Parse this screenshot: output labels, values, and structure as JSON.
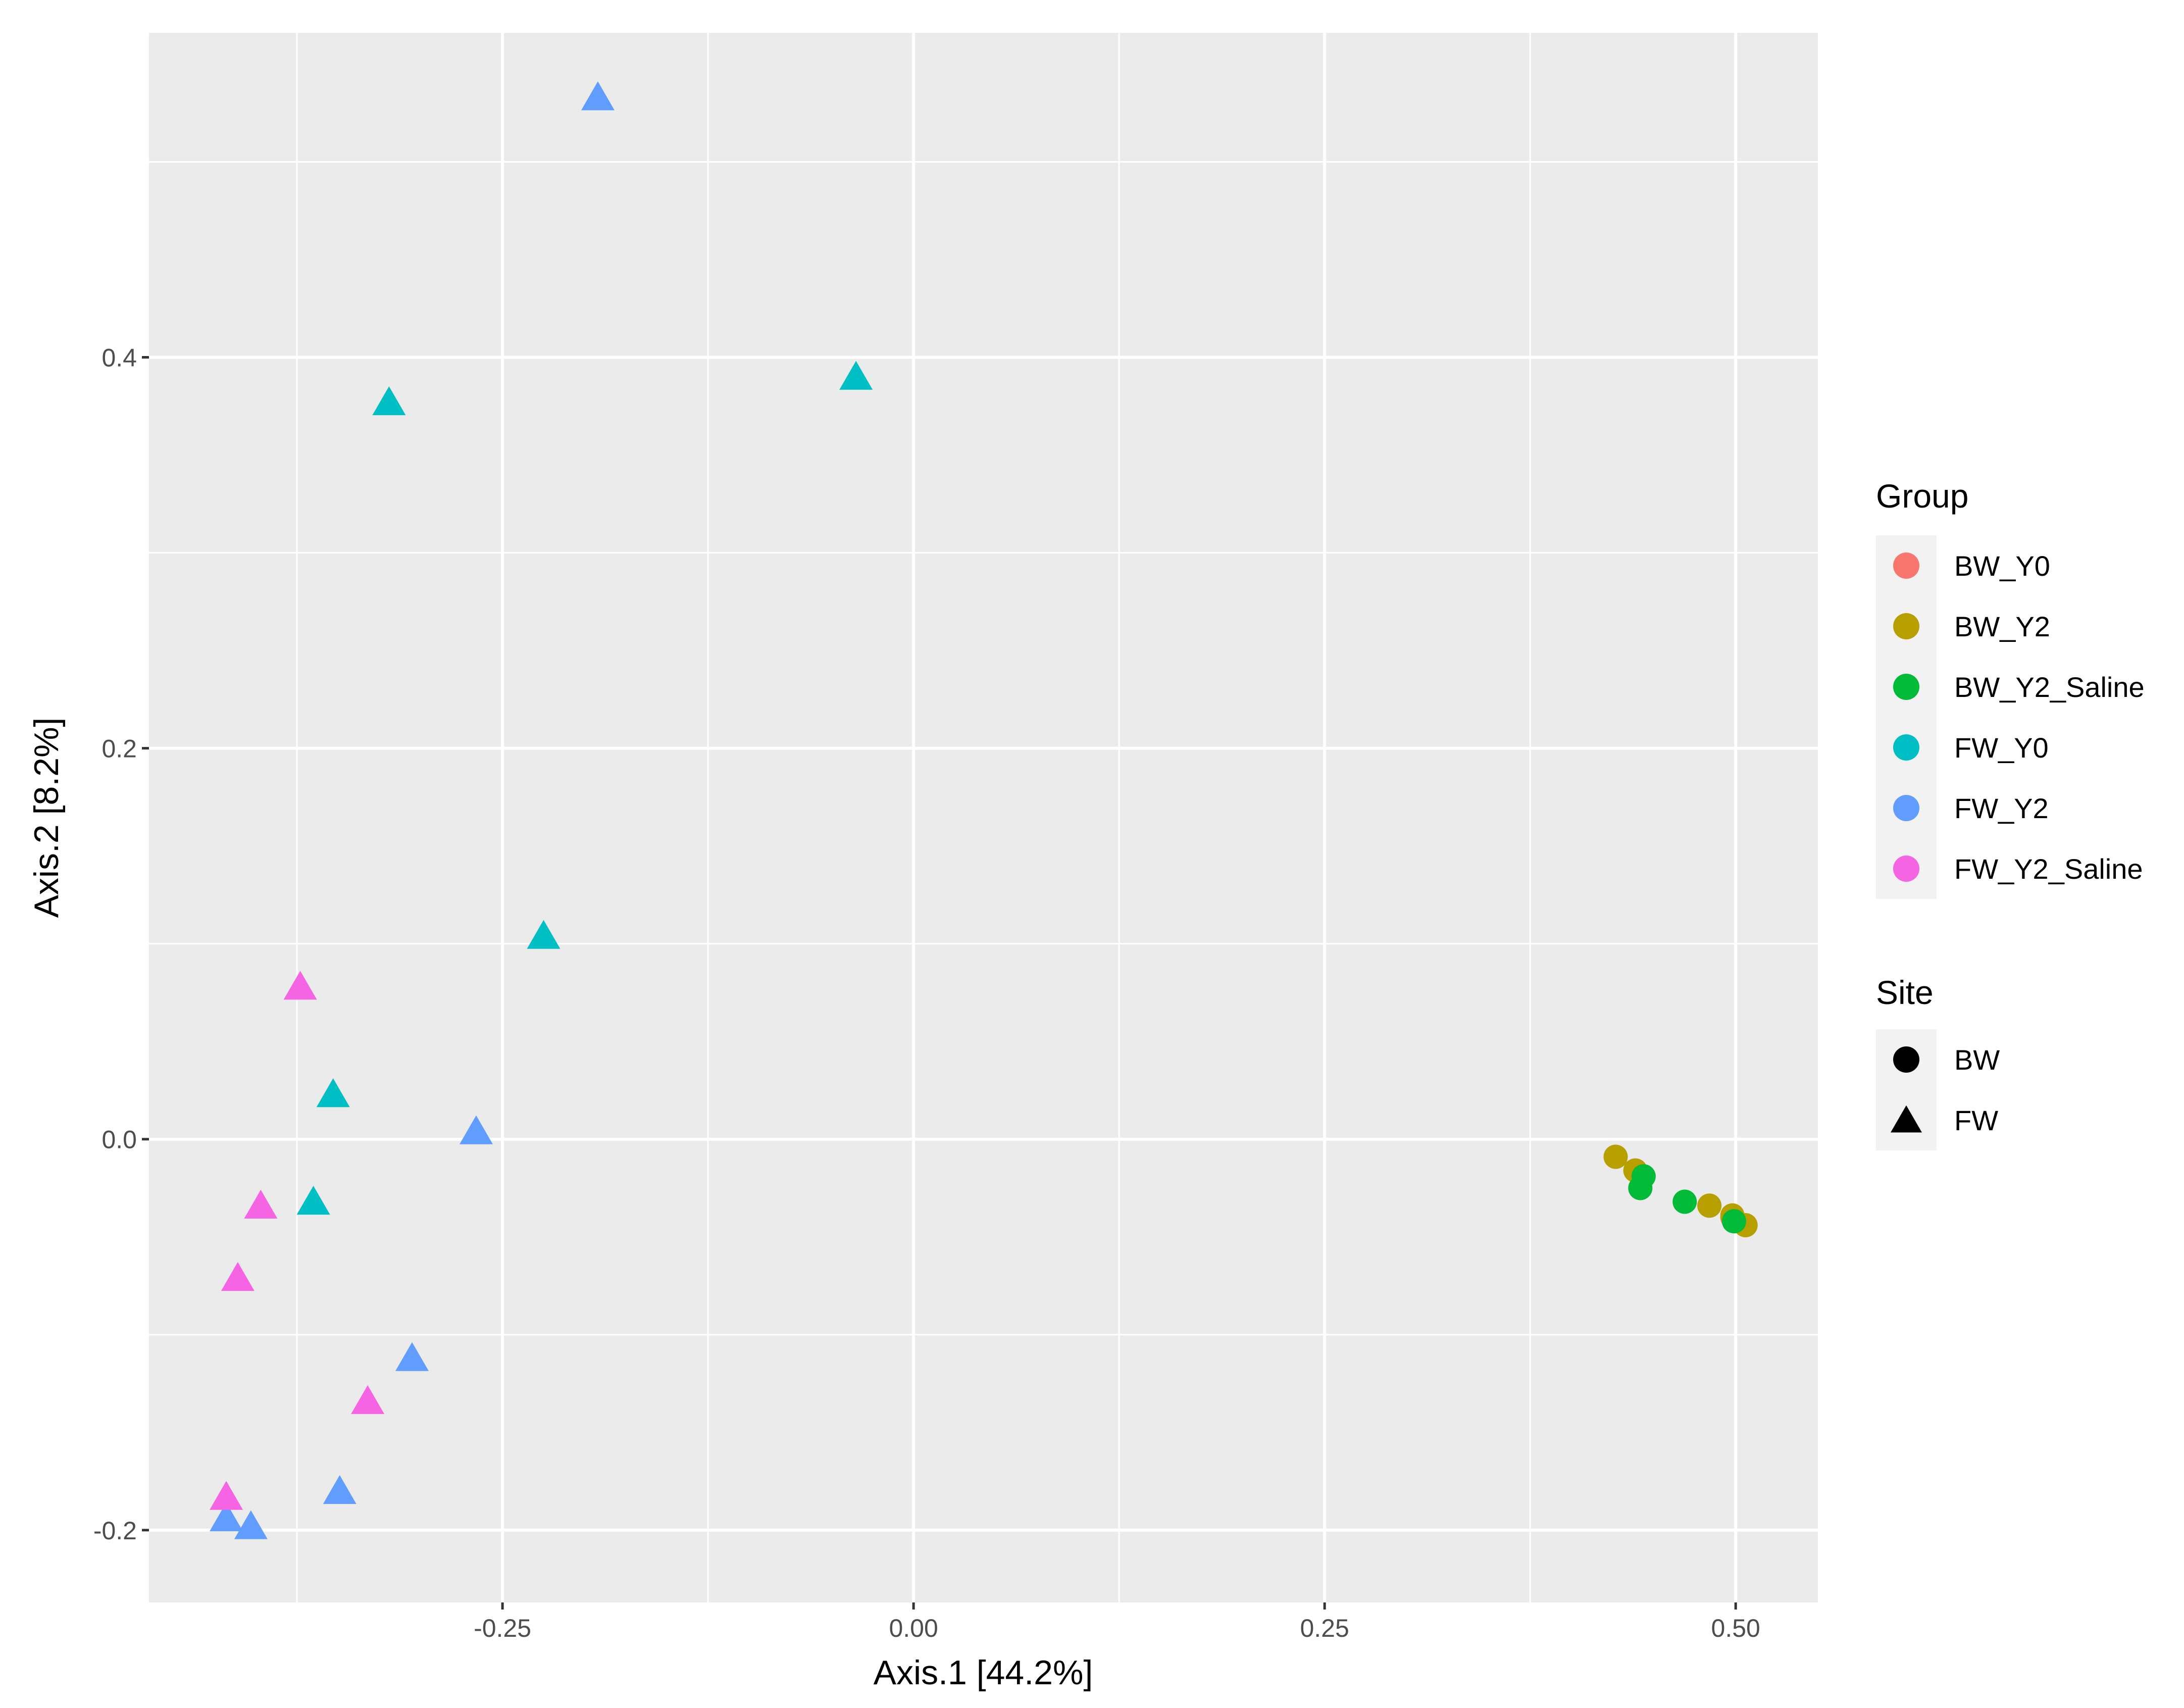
{
  "chart_data": {
    "type": "scatter",
    "xlabel": "Axis.1   [44.2%]",
    "ylabel": "Axis.2   [8.2%]",
    "xlim": [
      -0.465,
      0.55
    ],
    "ylim": [
      -0.237,
      0.566
    ],
    "x_ticks": [
      {
        "value": -0.25,
        "label": "-0.25"
      },
      {
        "value": 0.0,
        "label": "0.00"
      },
      {
        "value": 0.25,
        "label": "0.25"
      },
      {
        "value": 0.5,
        "label": "0.50"
      }
    ],
    "y_ticks": [
      {
        "value": -0.2,
        "label": "-0.2"
      },
      {
        "value": 0.0,
        "label": "0.0"
      },
      {
        "value": 0.2,
        "label": "0.2"
      },
      {
        "value": 0.4,
        "label": "0.4"
      }
    ],
    "grid": true,
    "legend_placement": "right",
    "legends": [
      {
        "title": "Group",
        "entries": [
          {
            "label": "BW_Y0",
            "color": "#F8766D",
            "shape": "circle"
          },
          {
            "label": "BW_Y2",
            "color": "#B79F00",
            "shape": "circle"
          },
          {
            "label": "BW_Y2_Saline",
            "color": "#00BA38",
            "shape": "circle"
          },
          {
            "label": "FW_Y0",
            "color": "#00BFC4",
            "shape": "circle"
          },
          {
            "label": "FW_Y2",
            "color": "#619CFF",
            "shape": "circle"
          },
          {
            "label": "FW_Y2_Saline",
            "color": "#F564E3",
            "shape": "circle"
          }
        ]
      },
      {
        "title": "Site",
        "entries": [
          {
            "label": "BW",
            "color": "#000000",
            "shape": "circle"
          },
          {
            "label": "FW",
            "color": "#000000",
            "shape": "triangle"
          }
        ]
      }
    ],
    "series": [
      {
        "group": "BW_Y0",
        "site": "BW",
        "color": "#F8766D",
        "shape": "circle",
        "points": [
          [
            0.498,
            -0.04
          ]
        ]
      },
      {
        "group": "BW_Y2",
        "site": "BW",
        "color": "#B79F00",
        "shape": "circle",
        "points": [
          [
            0.427,
            -0.009
          ],
          [
            0.439,
            -0.016
          ],
          [
            0.484,
            -0.034
          ],
          [
            0.498,
            -0.039
          ],
          [
            0.506,
            -0.044
          ]
        ]
      },
      {
        "group": "BW_Y2_Saline",
        "site": "BW",
        "color": "#00BA38",
        "shape": "circle",
        "points": [
          [
            0.444,
            -0.019
          ],
          [
            0.442,
            -0.025
          ],
          [
            0.469,
            -0.032
          ],
          [
            0.499,
            -0.042
          ]
        ]
      },
      {
        "group": "FW_Y0",
        "site": "FW",
        "color": "#00BFC4",
        "shape": "triangle",
        "points": [
          [
            -0.319,
            0.376
          ],
          [
            -0.035,
            0.389
          ],
          [
            -0.225,
            0.103
          ],
          [
            -0.353,
            0.022
          ],
          [
            -0.365,
            -0.033
          ]
        ]
      },
      {
        "group": "FW_Y2",
        "site": "FW",
        "color": "#619CFF",
        "shape": "triangle",
        "points": [
          [
            -0.192,
            0.532
          ],
          [
            -0.266,
            0.003
          ],
          [
            -0.305,
            -0.113
          ],
          [
            -0.349,
            -0.181
          ],
          [
            -0.418,
            -0.195
          ],
          [
            -0.403,
            -0.199
          ]
        ]
      },
      {
        "group": "FW_Y2_Saline",
        "site": "FW",
        "color": "#F564E3",
        "shape": "triangle",
        "points": [
          [
            -0.373,
            0.077
          ],
          [
            -0.397,
            -0.035
          ],
          [
            -0.411,
            -0.072
          ],
          [
            -0.332,
            -0.135
          ],
          [
            -0.418,
            -0.184
          ]
        ]
      }
    ]
  }
}
